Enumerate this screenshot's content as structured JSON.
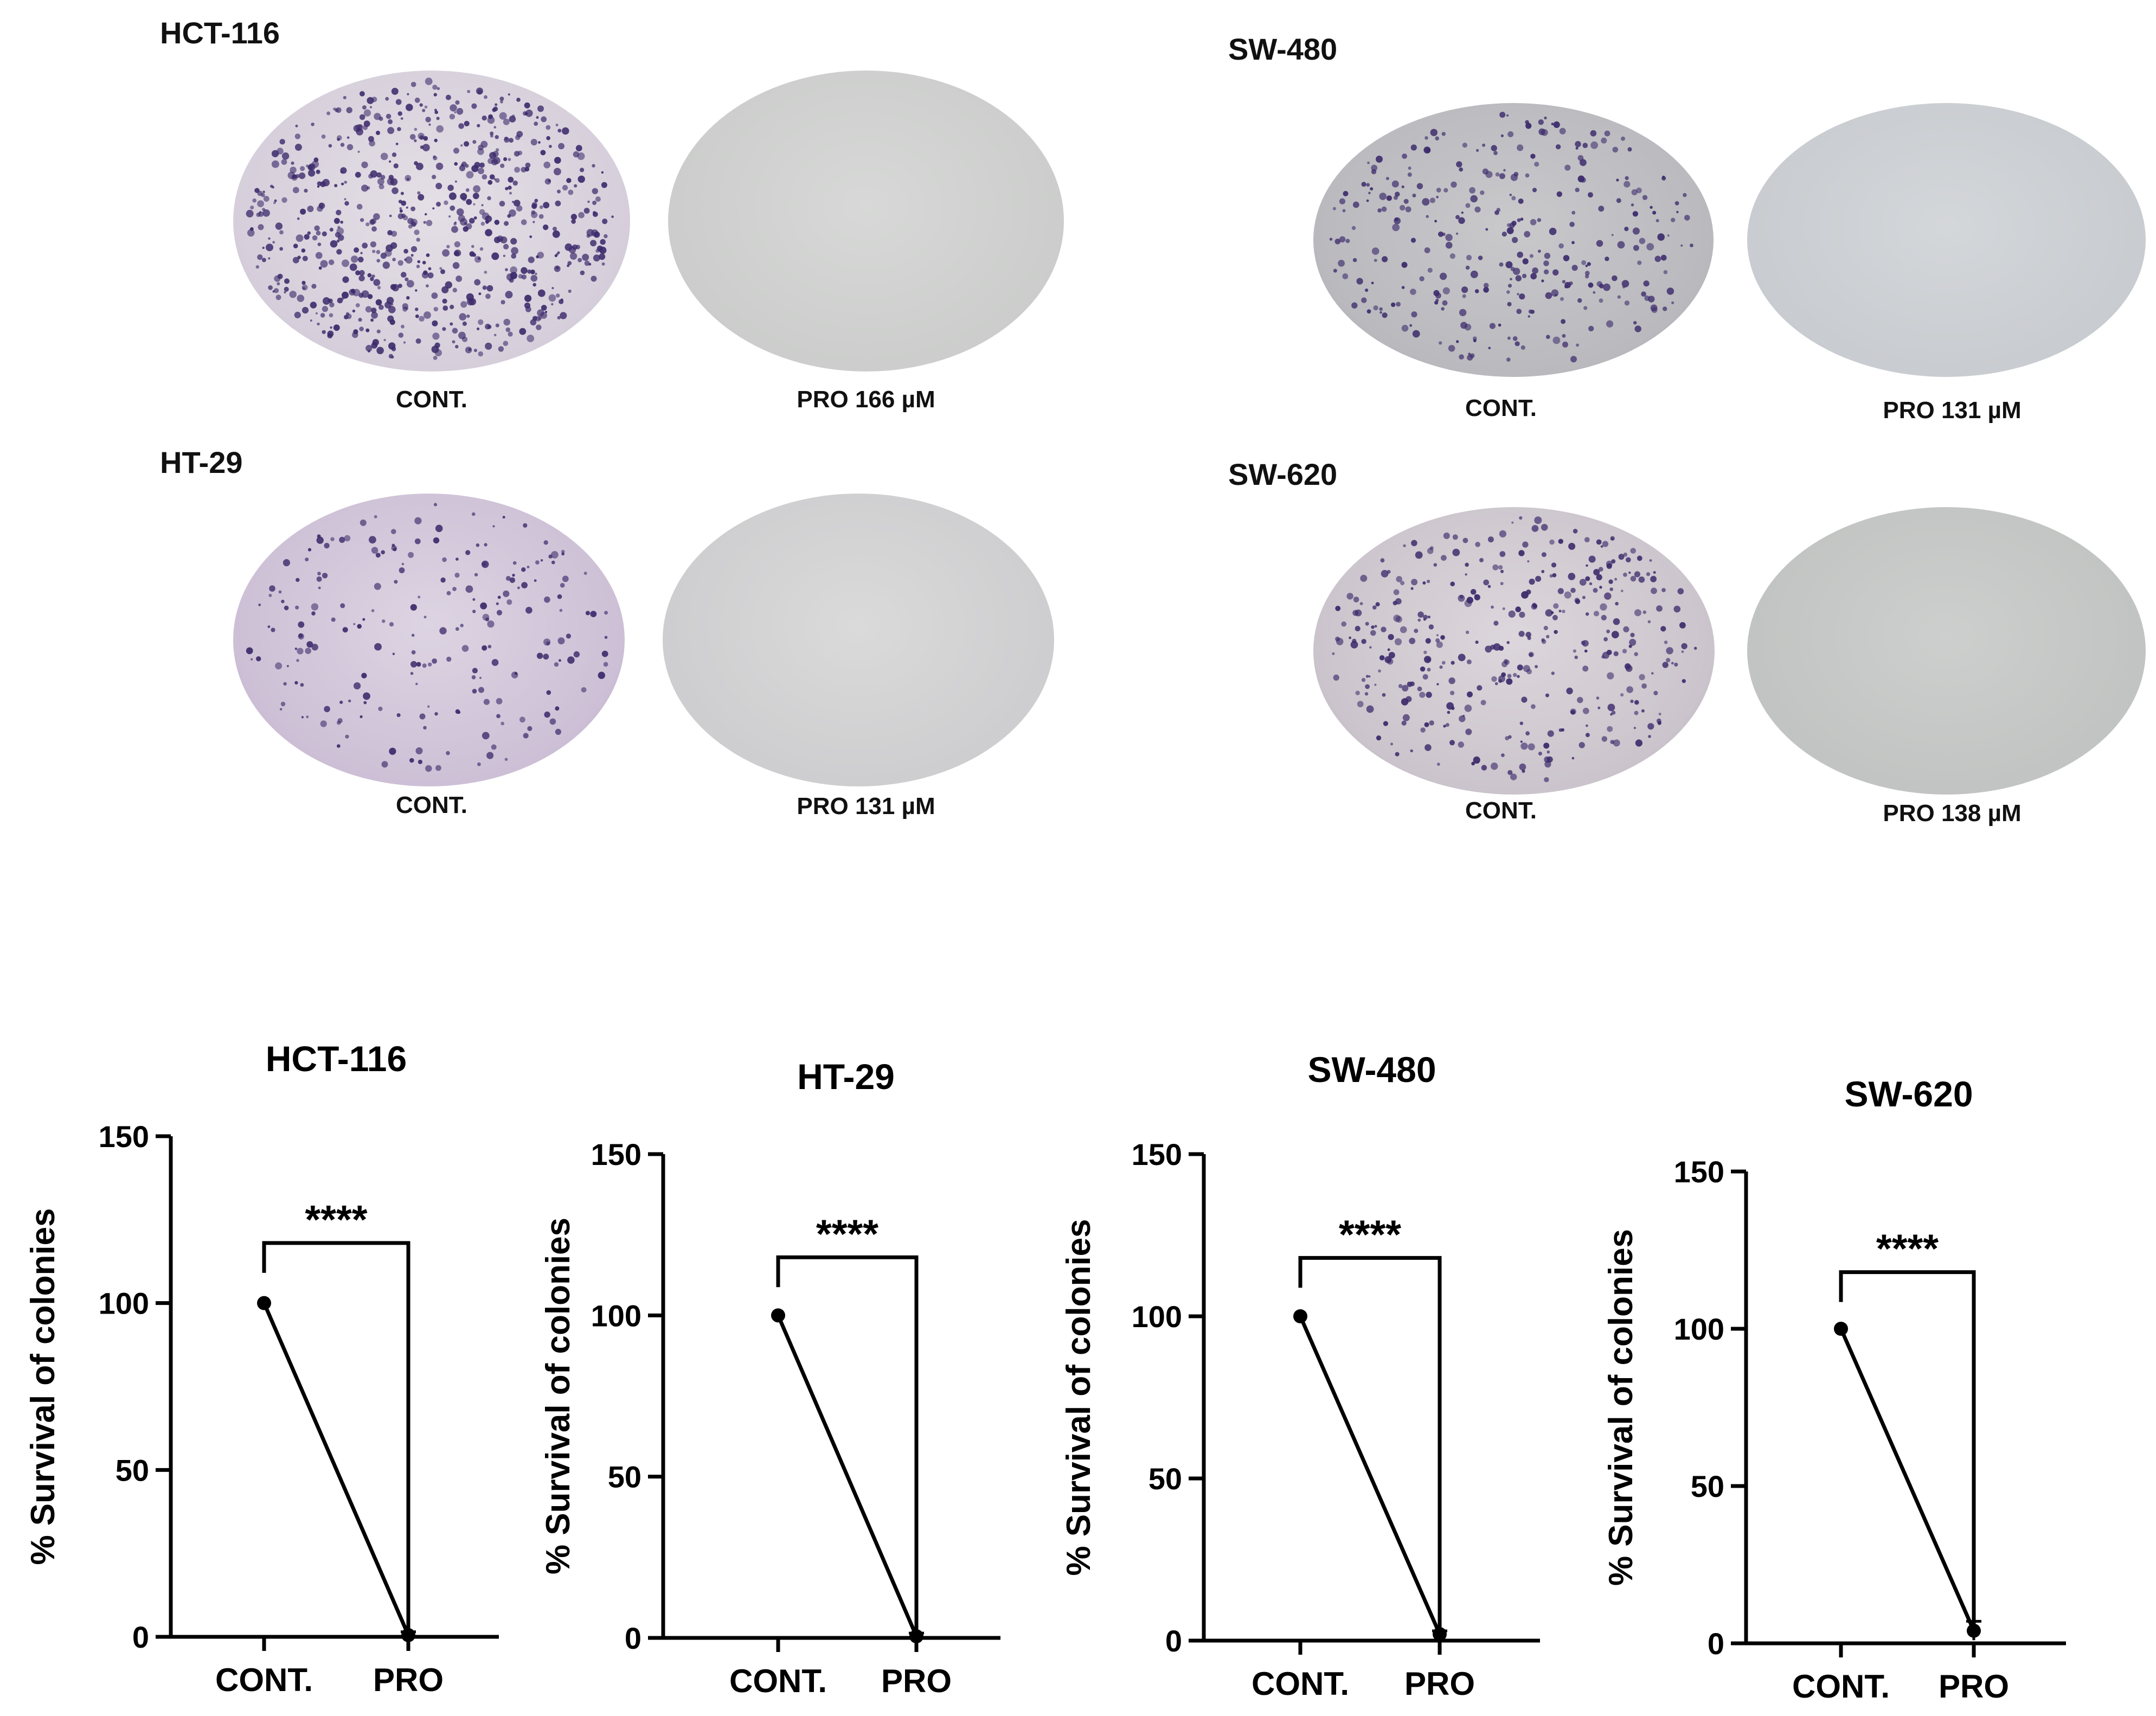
{
  "photos": {
    "panels": [
      {
        "cell_line": "HCT-116",
        "control_label": "CONT.",
        "treated_label": "PRO 166 µM"
      },
      {
        "cell_line": "SW-480",
        "control_label": "CONT.",
        "treated_label": "PRO 131 µM"
      },
      {
        "cell_line": "HT-29",
        "control_label": "CONT.",
        "treated_label": "PRO 131 µM"
      },
      {
        "cell_line": "SW-620",
        "control_label": "CONT.",
        "treated_label": "PRO 138 µM"
      }
    ]
  },
  "colors": {
    "axis": "#000000",
    "series": "#000000",
    "dish_control": "#d9d1dd",
    "dish_treated": "#cfd0cf",
    "colony": "#3c2a6b"
  },
  "chart_data": [
    {
      "type": "line",
      "title": "HCT-116",
      "categories": [
        "CONT.",
        "PRO"
      ],
      "values": [
        100,
        0.5
      ],
      "error": [
        0,
        1
      ],
      "ylabel": "% Survival of colonies",
      "xlabel": "",
      "ylim": [
        0,
        150
      ],
      "yticks": [
        0,
        50,
        100,
        150
      ],
      "significance": "****",
      "grid": false
    },
    {
      "type": "line",
      "title": "HT-29",
      "categories": [
        "CONT.",
        "PRO"
      ],
      "values": [
        100,
        0.5
      ],
      "error": [
        0,
        1
      ],
      "ylabel": "% Survival of colonies",
      "xlabel": "",
      "ylim": [
        0,
        150
      ],
      "yticks": [
        0,
        50,
        100,
        150
      ],
      "significance": "****",
      "grid": false
    },
    {
      "type": "line",
      "title": "SW-480",
      "categories": [
        "CONT.",
        "PRO"
      ],
      "values": [
        100,
        2
      ],
      "error": [
        0,
        1
      ],
      "ylabel": "% Survival of colonies",
      "xlabel": "",
      "ylim": [
        0,
        150
      ],
      "yticks": [
        0,
        50,
        100,
        150
      ],
      "significance": "****",
      "grid": false
    },
    {
      "type": "line",
      "title": "SW-620",
      "categories": [
        "CONT.",
        "PRO"
      ],
      "values": [
        100,
        4
      ],
      "error": [
        0,
        3
      ],
      "ylabel": "% Survival of colonies",
      "xlabel": "",
      "ylim": [
        0,
        150
      ],
      "yticks": [
        0,
        50,
        100,
        150
      ],
      "significance": "****",
      "grid": false
    }
  ]
}
